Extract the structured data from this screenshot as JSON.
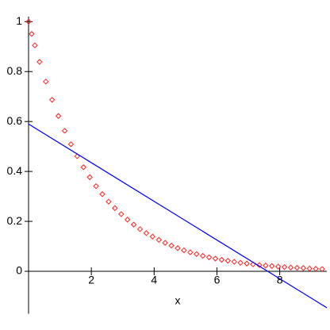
{
  "chart_data": {
    "type": "scatter",
    "x_label": "x",
    "xlim": [
      0,
      9.5
    ],
    "ylim": [
      -0.17,
      1.02
    ],
    "xticks": [
      2,
      4,
      6,
      8
    ],
    "yticks": [
      0,
      0.2,
      0.4,
      0.6,
      0.8,
      1
    ],
    "series": [
      {
        "type": "scatter",
        "color": "#ff2020",
        "x": [
          0,
          0.1,
          0.2,
          0.35,
          0.55,
          0.75,
          0.95,
          1.15,
          1.35,
          1.55,
          1.75,
          1.95,
          2.15,
          2.35,
          2.55,
          2.75,
          2.95,
          3.15,
          3.35,
          3.55,
          3.75,
          3.95,
          4.15,
          4.35,
          4.55,
          4.75,
          4.95,
          5.15,
          5.35,
          5.55,
          5.75,
          5.95,
          6.15,
          6.35,
          6.55,
          6.75,
          6.95,
          7.15,
          7.35,
          7.55,
          7.75,
          7.95,
          8.15,
          8.35,
          8.55,
          8.75,
          8.95,
          9.15,
          9.35
        ],
        "values": [
          1,
          0.951,
          0.905,
          0.839,
          0.76,
          0.687,
          0.622,
          0.563,
          0.509,
          0.461,
          0.417,
          0.377,
          0.341,
          0.309,
          0.279,
          0.253,
          0.229,
          0.207,
          0.187,
          0.169,
          0.153,
          0.139,
          0.126,
          0.114,
          0.103,
          0.093,
          0.084,
          0.076,
          0.069,
          0.062,
          0.056,
          0.051,
          0.046,
          0.042,
          0.038,
          0.034,
          0.031,
          0.028,
          0.025,
          0.023,
          0.021,
          0.019,
          0.017,
          0.015,
          0.014,
          0.013,
          0.011,
          0.01,
          0.009
        ]
      },
      {
        "type": "line",
        "color": "#0000ff",
        "x": [
          0,
          9.5
        ],
        "values": [
          0.59,
          -0.146
        ]
      }
    ]
  }
}
